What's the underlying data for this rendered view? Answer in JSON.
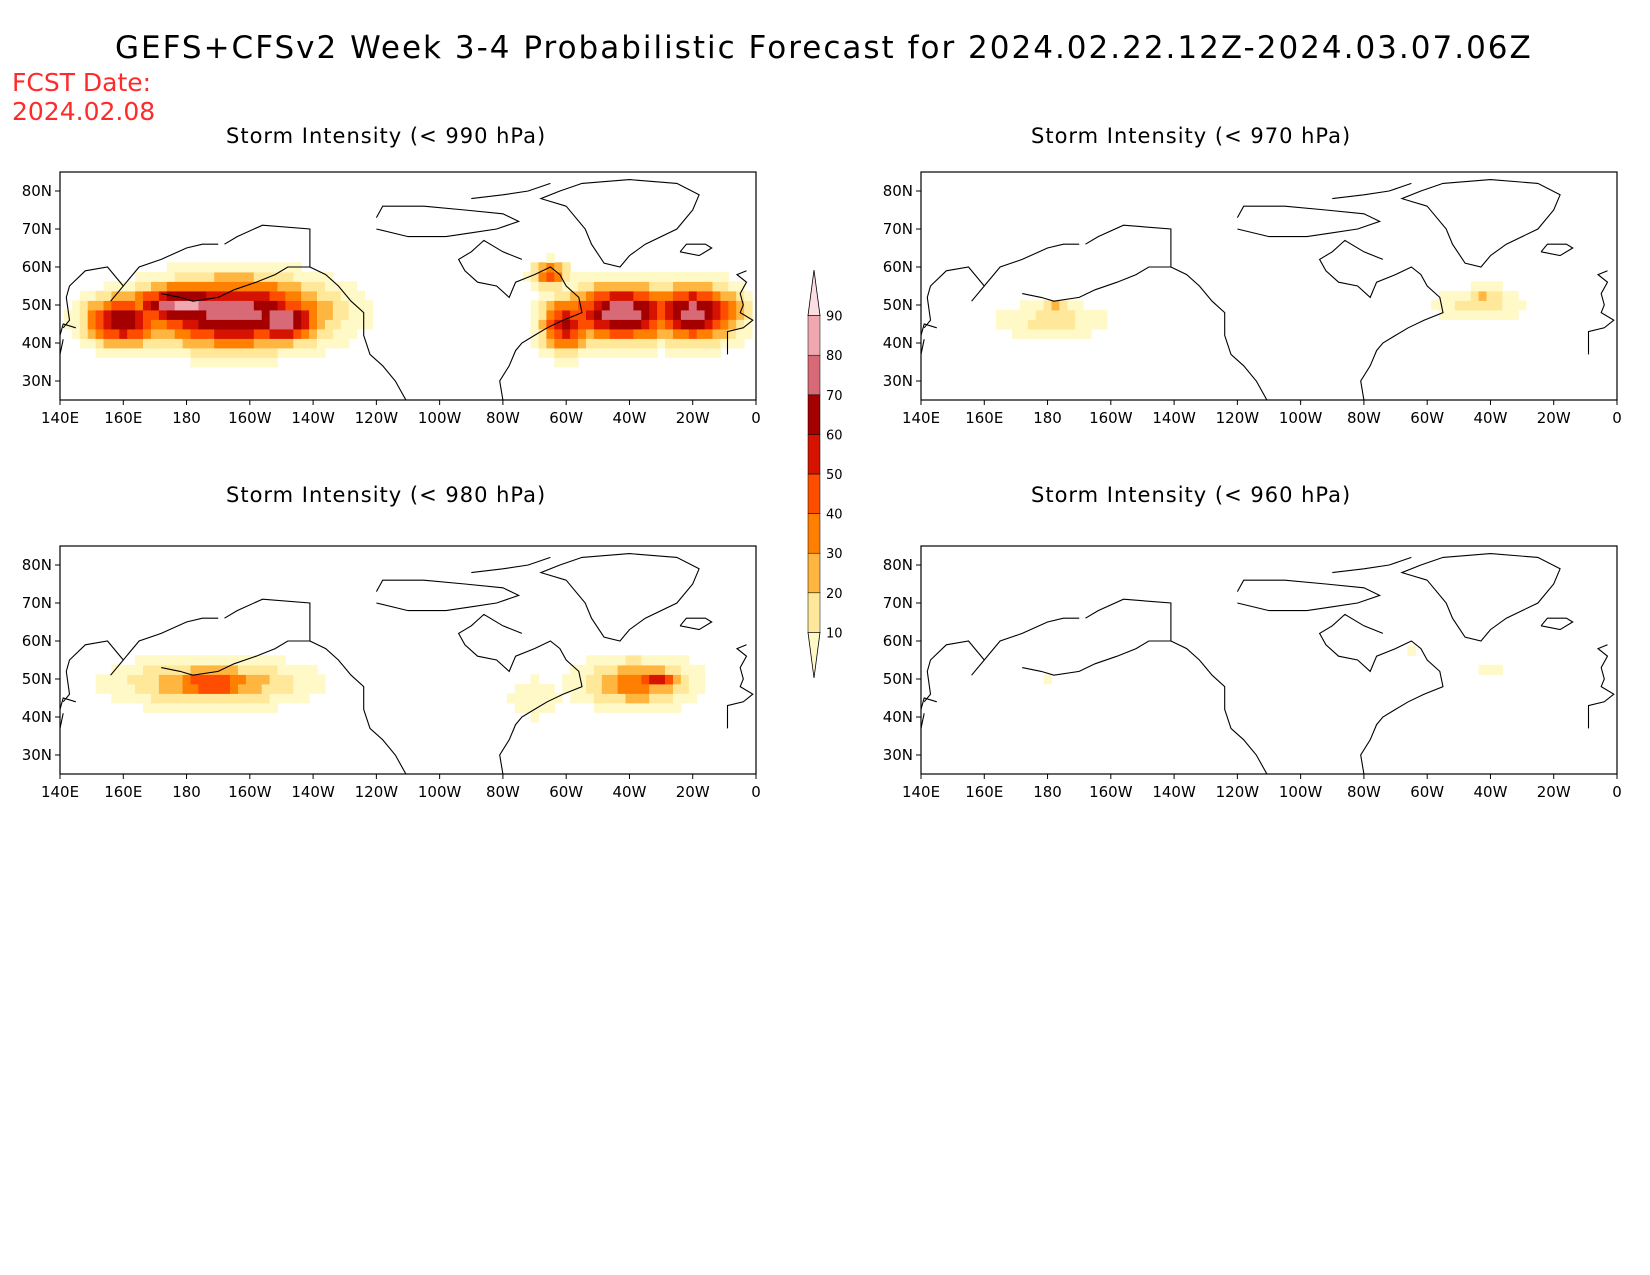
{
  "title": "GEFS+CFSv2 Week 3-4 Probabilistic Forecast for 2024.02.22.12Z-2024.03.07.06Z",
  "forecast_date": {
    "label": "FCST Date:",
    "value": "2024.02.08"
  },
  "longitude_ticks": [
    "140E",
    "160E",
    "180",
    "160W",
    "140W",
    "120W",
    "100W",
    "80W",
    "60W",
    "40W",
    "20W",
    "0"
  ],
  "latitude_ticks": [
    "80N",
    "70N",
    "60N",
    "50N",
    "40N",
    "30N"
  ],
  "colorbar": {
    "levels": [
      "10",
      "20",
      "30",
      "40",
      "50",
      "60",
      "70",
      "80",
      "90"
    ],
    "colors": [
      "#fff9c8",
      "#ffe89a",
      "#ffb640",
      "#ff8000",
      "#ff4d00",
      "#d61200",
      "#a50000",
      "#d86a78",
      "#f0a8b0",
      "#fcdde2"
    ]
  },
  "panels": [
    {
      "title": "Storm Intensity (< 990 hPa)",
      "blobs": [
        {
          "lon": -165,
          "lat": 48,
          "rlon": 35,
          "rlat": 11,
          "p": 88
        },
        {
          "lon": -180,
          "lat": 50,
          "rlon": 22,
          "rlat": 7,
          "p": 95
        },
        {
          "lon": -150,
          "lat": 46,
          "rlon": 15,
          "rlat": 7,
          "p": 92
        },
        {
          "lon": 160,
          "lat": 46,
          "rlon": 15,
          "rlat": 8,
          "p": 80
        },
        {
          "lon": -42,
          "lat": 48,
          "rlon": 22,
          "rlat": 9,
          "p": 88
        },
        {
          "lon": -20,
          "lat": 48,
          "rlon": 18,
          "rlat": 9,
          "p": 86
        },
        {
          "lon": -60,
          "lat": 45,
          "rlon": 10,
          "rlat": 9,
          "p": 72
        },
        {
          "lon": -65,
          "lat": 58,
          "rlon": 7,
          "rlat": 4,
          "p": 60
        }
      ]
    },
    {
      "title": "Storm Intensity (< 970 hPa)",
      "blobs": [
        {
          "lon": -178,
          "lat": 46,
          "rlon": 23,
          "rlat": 6,
          "p": 24
        },
        {
          "lon": -178,
          "lat": 49,
          "rlon": 6,
          "rlat": 3,
          "p": 36
        },
        {
          "lon": -44,
          "lat": 50,
          "rlon": 20,
          "rlat": 6,
          "p": 24
        },
        {
          "lon": -42,
          "lat": 53,
          "rlon": 8,
          "rlat": 3,
          "p": 33
        }
      ]
    },
    {
      "title": "Storm Intensity (< 980 hPa)",
      "blobs": [
        {
          "lon": -172,
          "lat": 49,
          "rlon": 36,
          "rlat": 8,
          "p": 42
        },
        {
          "lon": -172,
          "lat": 49,
          "rlon": 20,
          "rlat": 5,
          "p": 62
        },
        {
          "lon": -38,
          "lat": 49,
          "rlon": 22,
          "rlat": 8,
          "p": 45
        },
        {
          "lon": -32,
          "lat": 50,
          "rlon": 10,
          "rlat": 4,
          "p": 68
        },
        {
          "lon": -70,
          "lat": 45,
          "rlon": 13,
          "rlat": 8,
          "p": 18
        }
      ]
    },
    {
      "title": "Storm Intensity (< 960 hPa)",
      "blobs": [
        {
          "lon": -180,
          "lat": 49,
          "rlon": 7,
          "rlat": 2,
          "p": 16
        },
        {
          "lon": -40,
          "lat": 53,
          "rlon": 6,
          "rlat": 2,
          "p": 16
        },
        {
          "lon": -64,
          "lat": 58,
          "rlon": 2,
          "rlat": 2,
          "p": 16
        }
      ]
    }
  ]
}
